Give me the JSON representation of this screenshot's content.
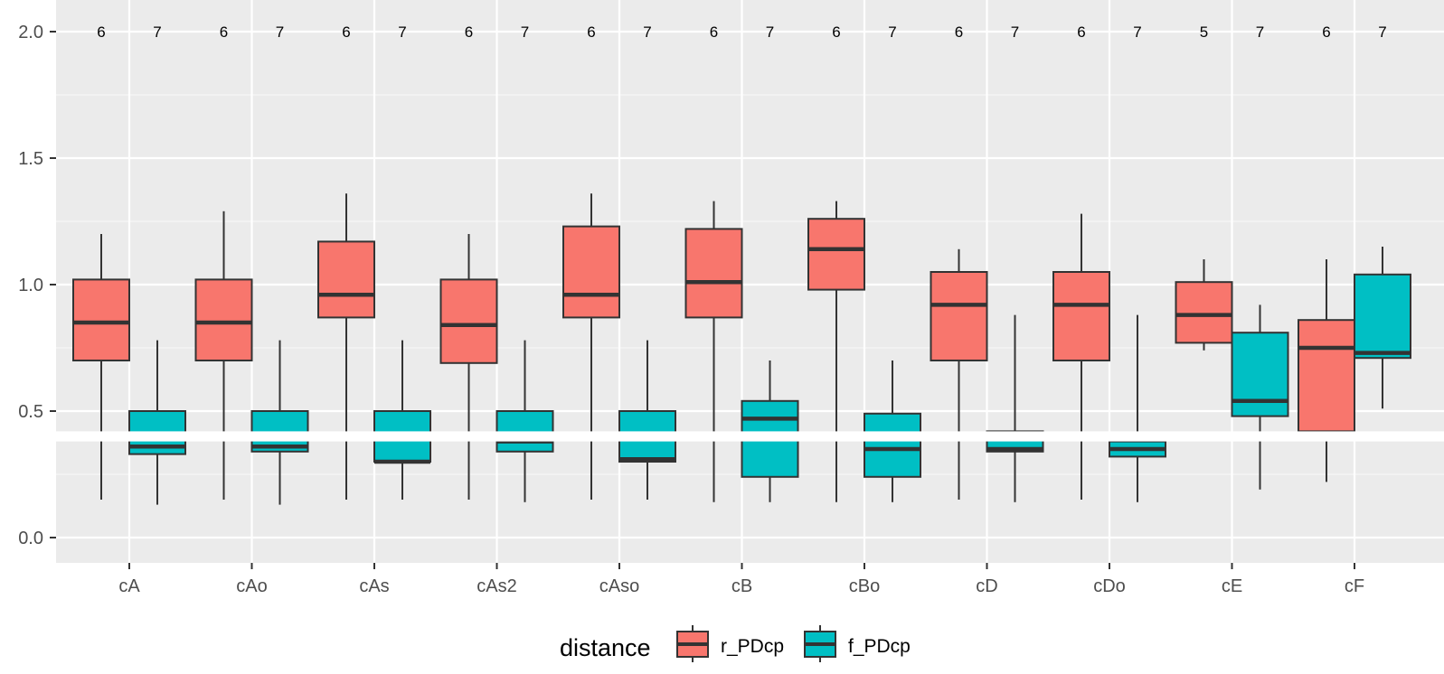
{
  "chart_data": {
    "type": "boxplot",
    "categories": [
      "cA",
      "cAo",
      "cAs",
      "cAs2",
      "cAso",
      "cB",
      "cBo",
      "cD",
      "cDo",
      "cE",
      "cF"
    ],
    "ylim": [
      -0.1,
      2.1
    ],
    "y_ticks": [
      "0.0",
      "0.5",
      "1.0",
      "1.5",
      "2.0"
    ],
    "y_tick_values": [
      0.0,
      0.5,
      1.0,
      1.5,
      2.0
    ],
    "grid": true,
    "legend": {
      "title": "distance",
      "position": "bottom"
    },
    "series": [
      {
        "name": "r_PDcp",
        "color": "#F8766D",
        "counts": [
          "6",
          "6",
          "6",
          "6",
          "6",
          "6",
          "6",
          "6",
          "6",
          "5",
          "6"
        ],
        "boxes": [
          {
            "min": 0.15,
            "q1": 0.7,
            "median": 0.85,
            "q3": 1.02,
            "max": 1.2
          },
          {
            "min": 0.15,
            "q1": 0.7,
            "median": 0.85,
            "q3": 1.02,
            "max": 1.29
          },
          {
            "min": 0.15,
            "q1": 0.87,
            "median": 0.96,
            "q3": 1.17,
            "max": 1.36
          },
          {
            "min": 0.15,
            "q1": 0.69,
            "median": 0.84,
            "q3": 1.02,
            "max": 1.2
          },
          {
            "min": 0.15,
            "q1": 0.87,
            "median": 0.96,
            "q3": 1.23,
            "max": 1.36
          },
          {
            "min": 0.14,
            "q1": 0.87,
            "median": 1.01,
            "q3": 1.22,
            "max": 1.33
          },
          {
            "min": 0.14,
            "q1": 0.98,
            "median": 1.14,
            "q3": 1.26,
            "max": 1.33
          },
          {
            "min": 0.15,
            "q1": 0.7,
            "median": 0.92,
            "q3": 1.05,
            "max": 1.14
          },
          {
            "min": 0.15,
            "q1": 0.7,
            "median": 0.92,
            "q3": 1.05,
            "max": 1.28
          },
          {
            "min": 0.74,
            "q1": 0.77,
            "median": 0.88,
            "q3": 1.01,
            "max": 1.1
          },
          {
            "min": 0.22,
            "q1": 0.42,
            "median": 0.75,
            "q3": 0.86,
            "max": 1.1
          }
        ]
      },
      {
        "name": "f_PDcp",
        "color": "#00BFC4",
        "counts": [
          "7",
          "7",
          "7",
          "7",
          "7",
          "7",
          "7",
          "7",
          "7",
          "7",
          "7"
        ],
        "boxes": [
          {
            "min": 0.13,
            "q1": 0.33,
            "median": 0.36,
            "q3": 0.5,
            "max": 0.78
          },
          {
            "min": 0.13,
            "q1": 0.34,
            "median": 0.36,
            "q3": 0.5,
            "max": 0.78
          },
          {
            "min": 0.15,
            "q1": 0.3,
            "median": 0.3,
            "q3": 0.5,
            "max": 0.78
          },
          {
            "min": 0.14,
            "q1": 0.34,
            "median": 0.38,
            "q3": 0.5,
            "max": 0.78
          },
          {
            "min": 0.15,
            "q1": 0.3,
            "median": 0.31,
            "q3": 0.5,
            "max": 0.78
          },
          {
            "min": 0.14,
            "q1": 0.24,
            "median": 0.47,
            "q3": 0.54,
            "max": 0.7
          },
          {
            "min": 0.14,
            "q1": 0.24,
            "median": 0.35,
            "q3": 0.49,
            "max": 0.7
          },
          {
            "min": 0.14,
            "q1": 0.34,
            "median": 0.35,
            "q3": 0.42,
            "max": 0.88
          },
          {
            "min": 0.14,
            "q1": 0.32,
            "median": 0.35,
            "q3": 0.38,
            "max": 0.88
          },
          {
            "min": 0.19,
            "q1": 0.48,
            "median": 0.54,
            "q3": 0.81,
            "max": 0.92
          },
          {
            "min": 0.51,
            "q1": 0.71,
            "median": 0.73,
            "q3": 1.04,
            "max": 1.15
          }
        ]
      }
    ],
    "overlay_band": {
      "y_from": 0.38,
      "y_to": 0.42,
      "color": "#ffffff"
    }
  }
}
